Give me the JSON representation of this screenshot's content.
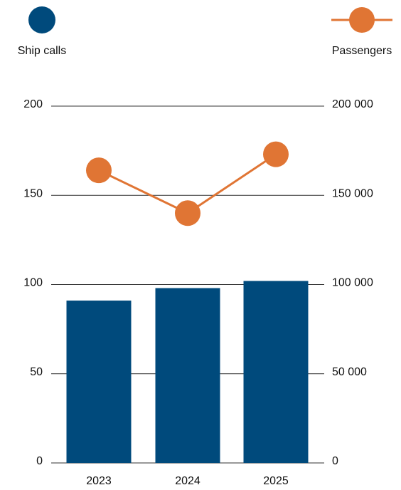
{
  "chart_data": {
    "type": "bar",
    "categories": [
      "2023",
      "2024",
      "2025"
    ],
    "series": [
      {
        "name": "Ship calls",
        "type": "bar",
        "axis": "left",
        "values": [
          91,
          98,
          102
        ],
        "color": "#004a7c"
      },
      {
        "name": "Passengers",
        "type": "line",
        "axis": "right",
        "values": [
          164000,
          140000,
          173000
        ],
        "color": "#e07534"
      }
    ],
    "y_left": {
      "ticks": [
        "0",
        "50",
        "100",
        "150",
        "200"
      ],
      "ylim": [
        0,
        200
      ]
    },
    "y_right": {
      "ticks": [
        "0",
        "50 000",
        "100 000",
        "150 000",
        "200 000"
      ],
      "ylim": [
        0,
        200000
      ]
    },
    "legend": {
      "placement": "top",
      "items": [
        "Ship calls",
        "Passengers"
      ]
    },
    "grid": true
  }
}
